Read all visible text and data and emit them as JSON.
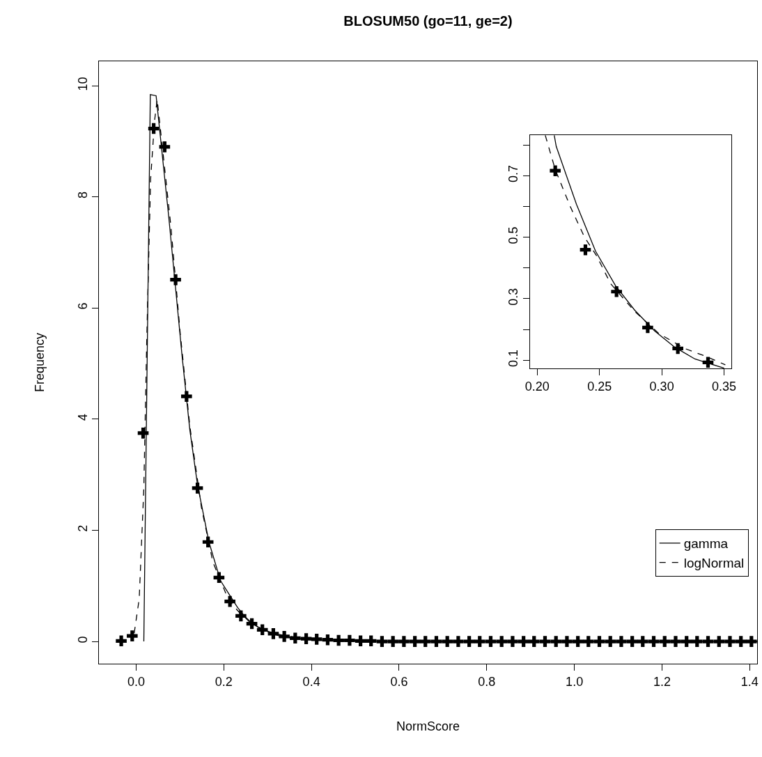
{
  "chart_data": [
    {
      "type": "line",
      "title": "BLOSUM50 (go=11, ge=2)",
      "xlabel": "NormScore",
      "ylabel": "Frequency",
      "xlim": [
        -0.085,
        1.417
      ],
      "ylim": [
        -0.4,
        10.44
      ],
      "xticks": [
        {
          "value": 0,
          "label": "0.0"
        },
        {
          "value": 0.2,
          "label": "0.2"
        },
        {
          "value": 0.4,
          "label": "0.4"
        },
        {
          "value": 0.6,
          "label": "0.6"
        },
        {
          "value": 0.8,
          "label": "0.8"
        },
        {
          "value": 1,
          "label": "1.0"
        },
        {
          "value": 1.2,
          "label": "1.2"
        },
        {
          "value": 1.4,
          "label": "1.4"
        }
      ],
      "yticks": [
        0,
        2,
        4,
        6,
        8,
        10
      ],
      "legend": "bottom right",
      "series": [
        {
          "type": "scatter",
          "marker": "cross",
          "color": "#000000",
          "x": [
            -0.034,
            -0.009,
            0.016,
            0.04,
            0.065,
            0.09,
            0.115,
            0.14,
            0.164,
            0.189,
            0.214,
            0.239,
            0.264,
            0.288,
            0.313,
            0.338,
            0.363,
            0.388,
            0.412,
            0.437,
            0.462,
            0.487,
            0.512,
            0.536,
            0.561,
            0.586,
            0.611,
            0.636,
            0.66,
            0.685,
            0.71,
            0.735,
            0.76,
            0.784,
            0.809,
            0.834,
            0.859,
            0.884,
            0.908,
            0.933,
            0.958,
            0.983,
            1.008,
            1.032,
            1.057,
            1.082,
            1.107,
            1.132,
            1.156,
            1.181,
            1.206,
            1.231,
            1.256,
            1.28,
            1.305,
            1.33,
            1.355,
            1.38,
            1.404
          ],
          "values": [
            0.01,
            0.1,
            3.75,
            9.23,
            8.9,
            6.51,
            4.41,
            2.76,
            1.79,
            1.15,
            0.72,
            0.46,
            0.32,
            0.21,
            0.14,
            0.09,
            0.06,
            0.05,
            0.04,
            0.03,
            0.02,
            0.02,
            0.01,
            0.01,
            0,
            0,
            0,
            0,
            0,
            0,
            0,
            0,
            0,
            0,
            0,
            0,
            0,
            0,
            0,
            0,
            0,
            0,
            0,
            0,
            0,
            0,
            0,
            0,
            0,
            0,
            0,
            0,
            0,
            0,
            0,
            0,
            0,
            0,
            0
          ]
        },
        {
          "name": "gamma",
          "line_style": "solid",
          "color": "#000000",
          "x": [
            0.0175,
            0.0323,
            0.0455,
            0.0745,
            0.105,
            0.1226,
            0.14,
            0.1664,
            0.1927,
            0.2137,
            0.2315,
            0.2468,
            0.2629,
            0.2782,
            0.2943,
            0.3105,
            0.3266,
            0.35,
            0.4,
            0.5,
            0.7,
            1.0,
            1.417
          ],
          "values": [
            0,
            9.84,
            9.82,
            7.63,
            5.12,
            3.8,
            2.82,
            1.78,
            1.09,
            0.83,
            0.61,
            0.46,
            0.34,
            0.26,
            0.2,
            0.14,
            0.1,
            0.07,
            0.03,
            0.01,
            0,
            0,
            0
          ]
        },
        {
          "name": "logNormal",
          "line_style": "dashed",
          "color": "#000000",
          "x": [
            -0.0044,
            0.007,
            0.0175,
            0.0245,
            0.033,
            0.042,
            0.048,
            0.061,
            0.079,
            0.1006,
            0.1226,
            0.149,
            0.175,
            0.2065,
            0.2145,
            0.2266,
            0.238,
            0.2476,
            0.2589,
            0.2782,
            0.2976,
            0.3185,
            0.3363,
            0.351,
            0.4,
            0.5,
            0.7,
            1.0,
            1.417
          ],
          "values": [
            0.15,
            0.77,
            2.76,
            5.54,
            8.32,
            9.37,
            9.75,
            8.81,
            7.49,
            5.54,
            3.87,
            2.41,
            1.43,
            0.83,
            0.72,
            0.6,
            0.5,
            0.44,
            0.35,
            0.26,
            0.19,
            0.14,
            0.11,
            0.09,
            0.04,
            0.02,
            0,
            0,
            0
          ]
        }
      ]
    },
    {
      "type": "line",
      "xlim": [
        0.194,
        0.3556
      ],
      "ylim": [
        0.073,
        0.832
      ],
      "xticks": [
        {
          "value": 0.2,
          "label": "0.20"
        },
        {
          "value": 0.25,
          "label": "0.25"
        },
        {
          "value": 0.3,
          "label": "0.30"
        },
        {
          "value": 0.35,
          "label": "0.35"
        }
      ],
      "yticks": [
        0.1,
        {
          "value": 0.2,
          "label": null
        },
        0.3,
        {
          "value": 0.4,
          "label": null
        },
        0.5,
        {
          "value": 0.6,
          "label": null
        },
        0.7,
        {
          "value": 0.8,
          "label": null
        }
      ],
      "series": [
        {
          "type": "scatter",
          "marker": "cross",
          "color": "#000000",
          "x": [
            0.2145,
            0.2387,
            0.2637,
            0.2887,
            0.3129,
            0.3371
          ],
          "values": [
            0.716,
            0.459,
            0.323,
            0.206,
            0.138,
            0.093
          ]
        },
        {
          "line_style": "solid",
          "color": "#000000",
          "x": [
            0.2137,
            0.2153,
            0.2315,
            0.2468,
            0.2629,
            0.2782,
            0.2943,
            0.3105,
            0.3266,
            0.35
          ],
          "values": [
            0.831,
            0.795,
            0.607,
            0.455,
            0.342,
            0.263,
            0.195,
            0.142,
            0.104,
            0.074
          ]
        },
        {
          "line_style": "dashed",
          "color": "#000000",
          "x": [
            0.2065,
            0.2145,
            0.2266,
            0.238,
            0.2476,
            0.2589,
            0.2782,
            0.2976,
            0.3185,
            0.3363,
            0.351
          ],
          "values": [
            0.831,
            0.72,
            0.599,
            0.5,
            0.44,
            0.349,
            0.259,
            0.187,
            0.138,
            0.111,
            0.085
          ]
        }
      ]
    }
  ]
}
